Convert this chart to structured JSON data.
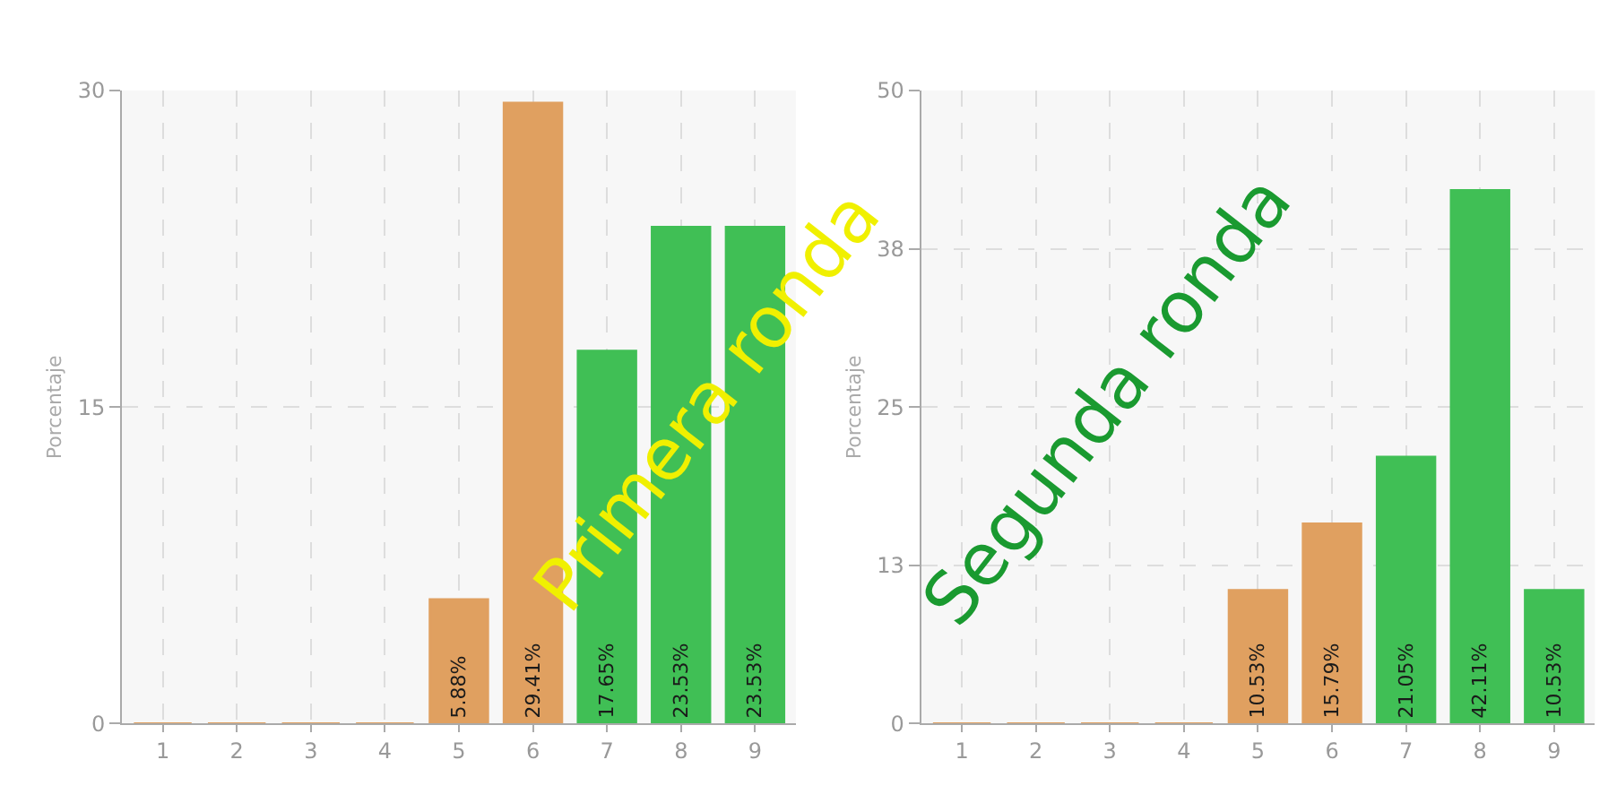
{
  "chart_data": [
    {
      "type": "bar",
      "ylabel": "Porcentaje",
      "categories": [
        "1",
        "2",
        "3",
        "4",
        "5",
        "6",
        "7",
        "8",
        "9"
      ],
      "values": [
        0,
        0,
        0,
        0,
        5.88,
        29.41,
        17.65,
        23.53,
        23.53
      ],
      "colors": [
        "#e0a060",
        "#e0a060",
        "#e0a060",
        "#e0a060",
        "#e0a060",
        "#e0a060",
        "#40bf55",
        "#40bf55",
        "#40bf55"
      ],
      "value_labels": [
        null,
        null,
        null,
        null,
        "5.88%",
        "29.41%",
        "17.65%",
        "23.53%",
        "23.53%"
      ],
      "ylim": [
        0,
        30
      ],
      "yticks": [
        0,
        15,
        30
      ],
      "grid": true,
      "annotations": [
        "Primera ronda"
      ]
    },
    {
      "type": "bar",
      "ylabel": "Porcentaje",
      "categories": [
        "1",
        "2",
        "3",
        "4",
        "5",
        "6",
        "7",
        "8",
        "9"
      ],
      "values": [
        0,
        0,
        0,
        0,
        10.53,
        15.79,
        21.05,
        42.11,
        10.53
      ],
      "colors": [
        "#e0a060",
        "#e0a060",
        "#e0a060",
        "#e0a060",
        "#e0a060",
        "#e0a060",
        "#40bf55",
        "#40bf55",
        "#40bf55"
      ],
      "value_labels": [
        null,
        null,
        null,
        null,
        "10.53%",
        "15.79%",
        "21.05%",
        "42.11%",
        "10.53%"
      ],
      "ylim": [
        0,
        50
      ],
      "yticks": [
        0,
        {
          "value": 12.5,
          "label": "13"
        },
        25,
        {
          "value": 37.5,
          "label": "38"
        },
        50
      ],
      "grid": true,
      "annotations": [
        "Segunda ronda"
      ]
    }
  ]
}
